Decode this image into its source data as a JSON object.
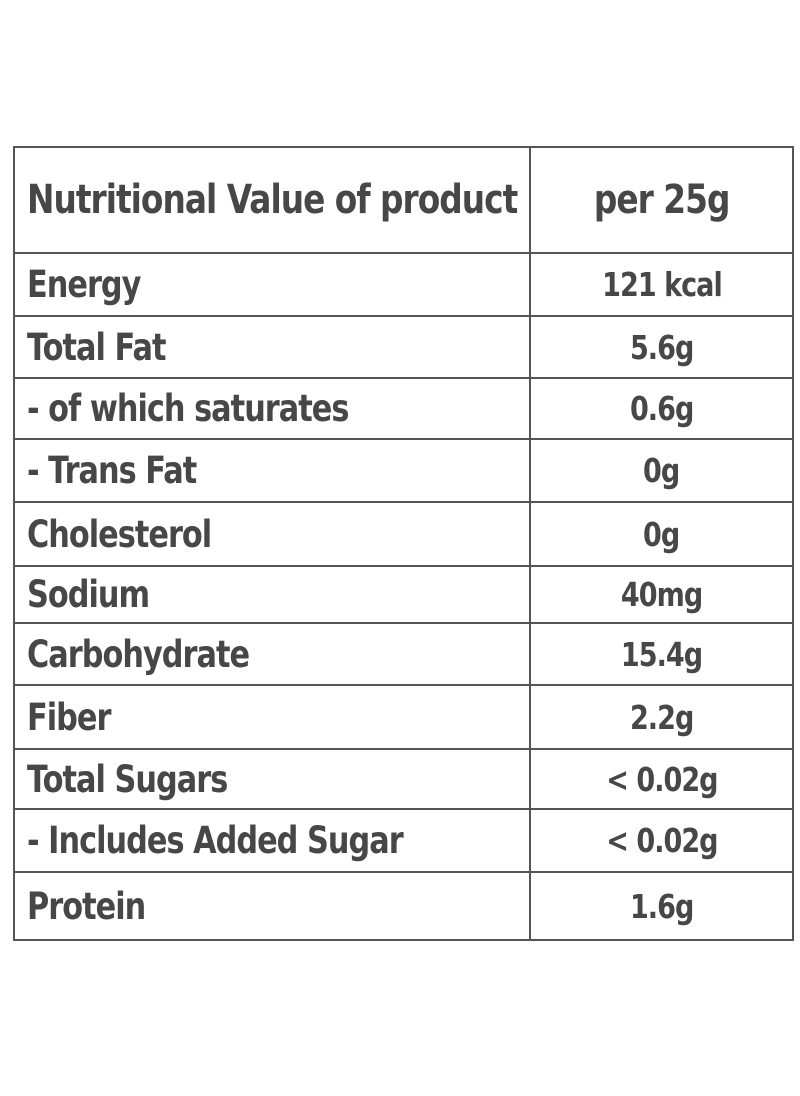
{
  "table": {
    "header": {
      "label": "Nutritional Value of product",
      "value": "per 25g"
    },
    "rows": [
      {
        "label": "Energy",
        "value": "121 kcal"
      },
      {
        "label": "Total Fat",
        "value": "5.6g"
      },
      {
        "label": "- of which saturates",
        "value": "0.6g"
      },
      {
        "label": "- Trans Fat",
        "value": "0g"
      },
      {
        "label": "Cholesterol",
        "value": "0g"
      },
      {
        "label": "Sodium",
        "value": "40mg"
      },
      {
        "label": "Carbohydrate",
        "value": "15.4g"
      },
      {
        "label": "Fiber",
        "value": "2.2g"
      },
      {
        "label": "Total Sugars",
        "value": "< 0.02g"
      },
      {
        "label": "- Includes Added Sugar",
        "value": "< 0.02g"
      },
      {
        "label": "Protein",
        "value": "1.6g"
      }
    ]
  },
  "colors": {
    "text": "#474747",
    "border": "#555555",
    "background": "#ffffff"
  }
}
